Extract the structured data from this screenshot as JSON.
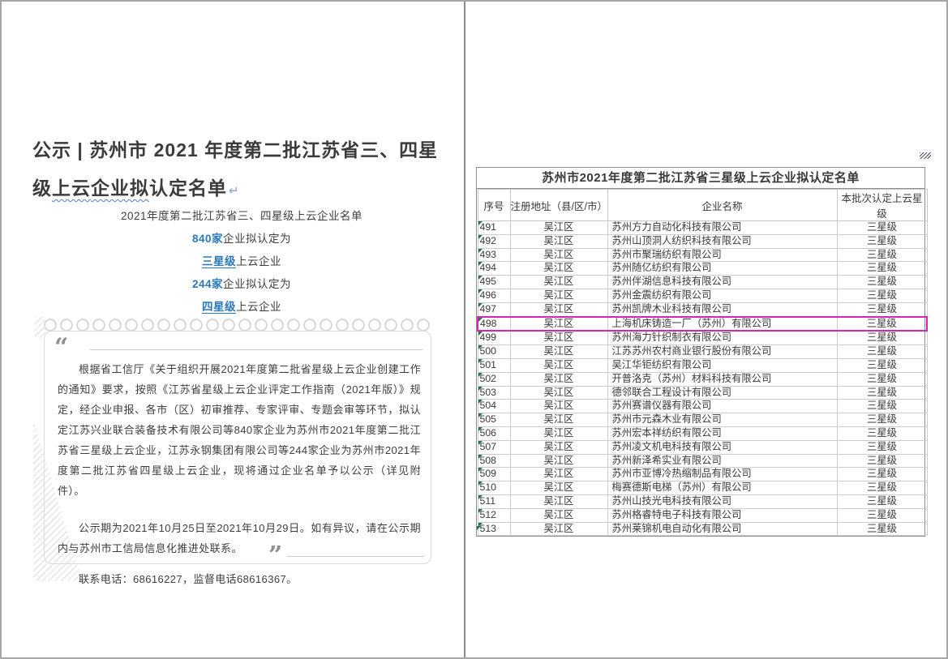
{
  "accent": {
    "blue": "#2878bd",
    "magenta": "#cf28b8",
    "green": "#217346"
  },
  "left": {
    "title": {
      "l1_main": "公示 | 苏州市 2021 年度第二批江苏省三、四星级",
      "l1_wavy": "上云",
      "l2_wavy": "企业拟",
      "l2_main": "认定名单",
      "return_mark": "↵"
    },
    "summary": [
      {
        "em": "",
        "rest": "2021年度第二批江苏省三、四星级上云企业名单"
      },
      {
        "em": "840家",
        "rest": "企业拟认定为"
      },
      {
        "em": "三星级",
        "rest": "上云企业"
      },
      {
        "em": "244家",
        "rest": "企业拟认定为"
      },
      {
        "em": "四星级",
        "rest": "上云企业"
      }
    ],
    "quote": {
      "open_mark": "“",
      "close_mark": "”",
      "p1": "根据省工信厅《关于组织开展2021年度第二批省星级上云企业创建工作的通知》要求，按照《江苏省星级上云企业评定工作指南（2021年版）》规定，经企业申报、各市（区）初审推荐、专家评审、专题会审等环节，拟认定江苏兴业联合装备技术有限公司等840家企业为苏州市2021年度第二批江苏省三星级上云企业，江苏永钢集团有限公司等244家企业为苏州市2021年度第二批江苏省四星级上云企业，现将通过企业名单予以公示（详见附件）。",
      "p2": "公示期为2021年10月25日至2021年10月29日。如有异议，请在公示期内与苏州市工信局信息化推进处联系。",
      "p3": "联系电话：68616227，监督电话68616367。"
    }
  },
  "right": {
    "table": {
      "title": "苏州市2021年度第二批江苏省三星级上云企业拟认定名单",
      "headers": [
        "序号",
        "注册地址（县/区/市）",
        "企业名称",
        "本批次认定上云星级"
      ],
      "highlight_no": "498",
      "rows": [
        {
          "n": "491",
          "d": "吴江区",
          "c": "苏州方力自动化科技有限公司",
          "s": "三星级"
        },
        {
          "n": "492",
          "d": "吴江区",
          "c": "苏州山顶洞人纺织科技有限公司",
          "s": "三星级"
        },
        {
          "n": "493",
          "d": "吴江区",
          "c": "苏州市聚瑞纺织有限公司",
          "s": "三星级"
        },
        {
          "n": "494",
          "d": "吴江区",
          "c": "苏州随亿纺织有限公司",
          "s": "三星级"
        },
        {
          "n": "495",
          "d": "吴江区",
          "c": "苏州伴湖信息科技有限公司",
          "s": "三星级"
        },
        {
          "n": "496",
          "d": "吴江区",
          "c": "苏州金震纺织有限公司",
          "s": "三星级"
        },
        {
          "n": "497",
          "d": "吴江区",
          "c": "苏州凯牌木业科技有限公司",
          "s": "三星级"
        },
        {
          "n": "498",
          "d": "吴江区",
          "c": "上海机床铸造一厂（苏州）有限公司",
          "s": "三星级"
        },
        {
          "n": "499",
          "d": "吴江区",
          "c": "苏州海力针织制衣有限公司",
          "s": "三星级"
        },
        {
          "n": "500",
          "d": "吴江区",
          "c": "江苏苏州农村商业银行股份有限公司",
          "s": "三星级"
        },
        {
          "n": "501",
          "d": "吴江区",
          "c": "吴江华钜纺织有限公司",
          "s": "三星级"
        },
        {
          "n": "502",
          "d": "吴江区",
          "c": "开普洛克（苏州）材料科技有限公司",
          "s": "三星级"
        },
        {
          "n": "503",
          "d": "吴江区",
          "c": "德邻联合工程设计有限公司",
          "s": "三星级"
        },
        {
          "n": "504",
          "d": "吴江区",
          "c": "苏州赛谱仪器有限公司",
          "s": "三星级"
        },
        {
          "n": "505",
          "d": "吴江区",
          "c": "苏州市元森木业有限公司",
          "s": "三星级"
        },
        {
          "n": "506",
          "d": "吴江区",
          "c": "苏州宏本祥纺织有限公司",
          "s": "三星级"
        },
        {
          "n": "507",
          "d": "吴江区",
          "c": "苏州凌文机电科技有限公司",
          "s": "三星级"
        },
        {
          "n": "508",
          "d": "吴江区",
          "c": "苏州新泽希实业有限公司",
          "s": "三星级"
        },
        {
          "n": "509",
          "d": "吴江区",
          "c": "苏州市亚博冷热缩制品有限公司",
          "s": "三星级"
        },
        {
          "n": "510",
          "d": "吴江区",
          "c": "梅赛德斯电梯（苏州）有限公司",
          "s": "三星级"
        },
        {
          "n": "511",
          "d": "吴江区",
          "c": "苏州山技光电科技有限公司",
          "s": "三星级"
        },
        {
          "n": "512",
          "d": "吴江区",
          "c": "苏州格睿特电子科技有限公司",
          "s": "三星级"
        },
        {
          "n": "513",
          "d": "吴江区",
          "c": "苏州莱锦机电自动化有限公司",
          "s": "三星级"
        }
      ]
    }
  }
}
